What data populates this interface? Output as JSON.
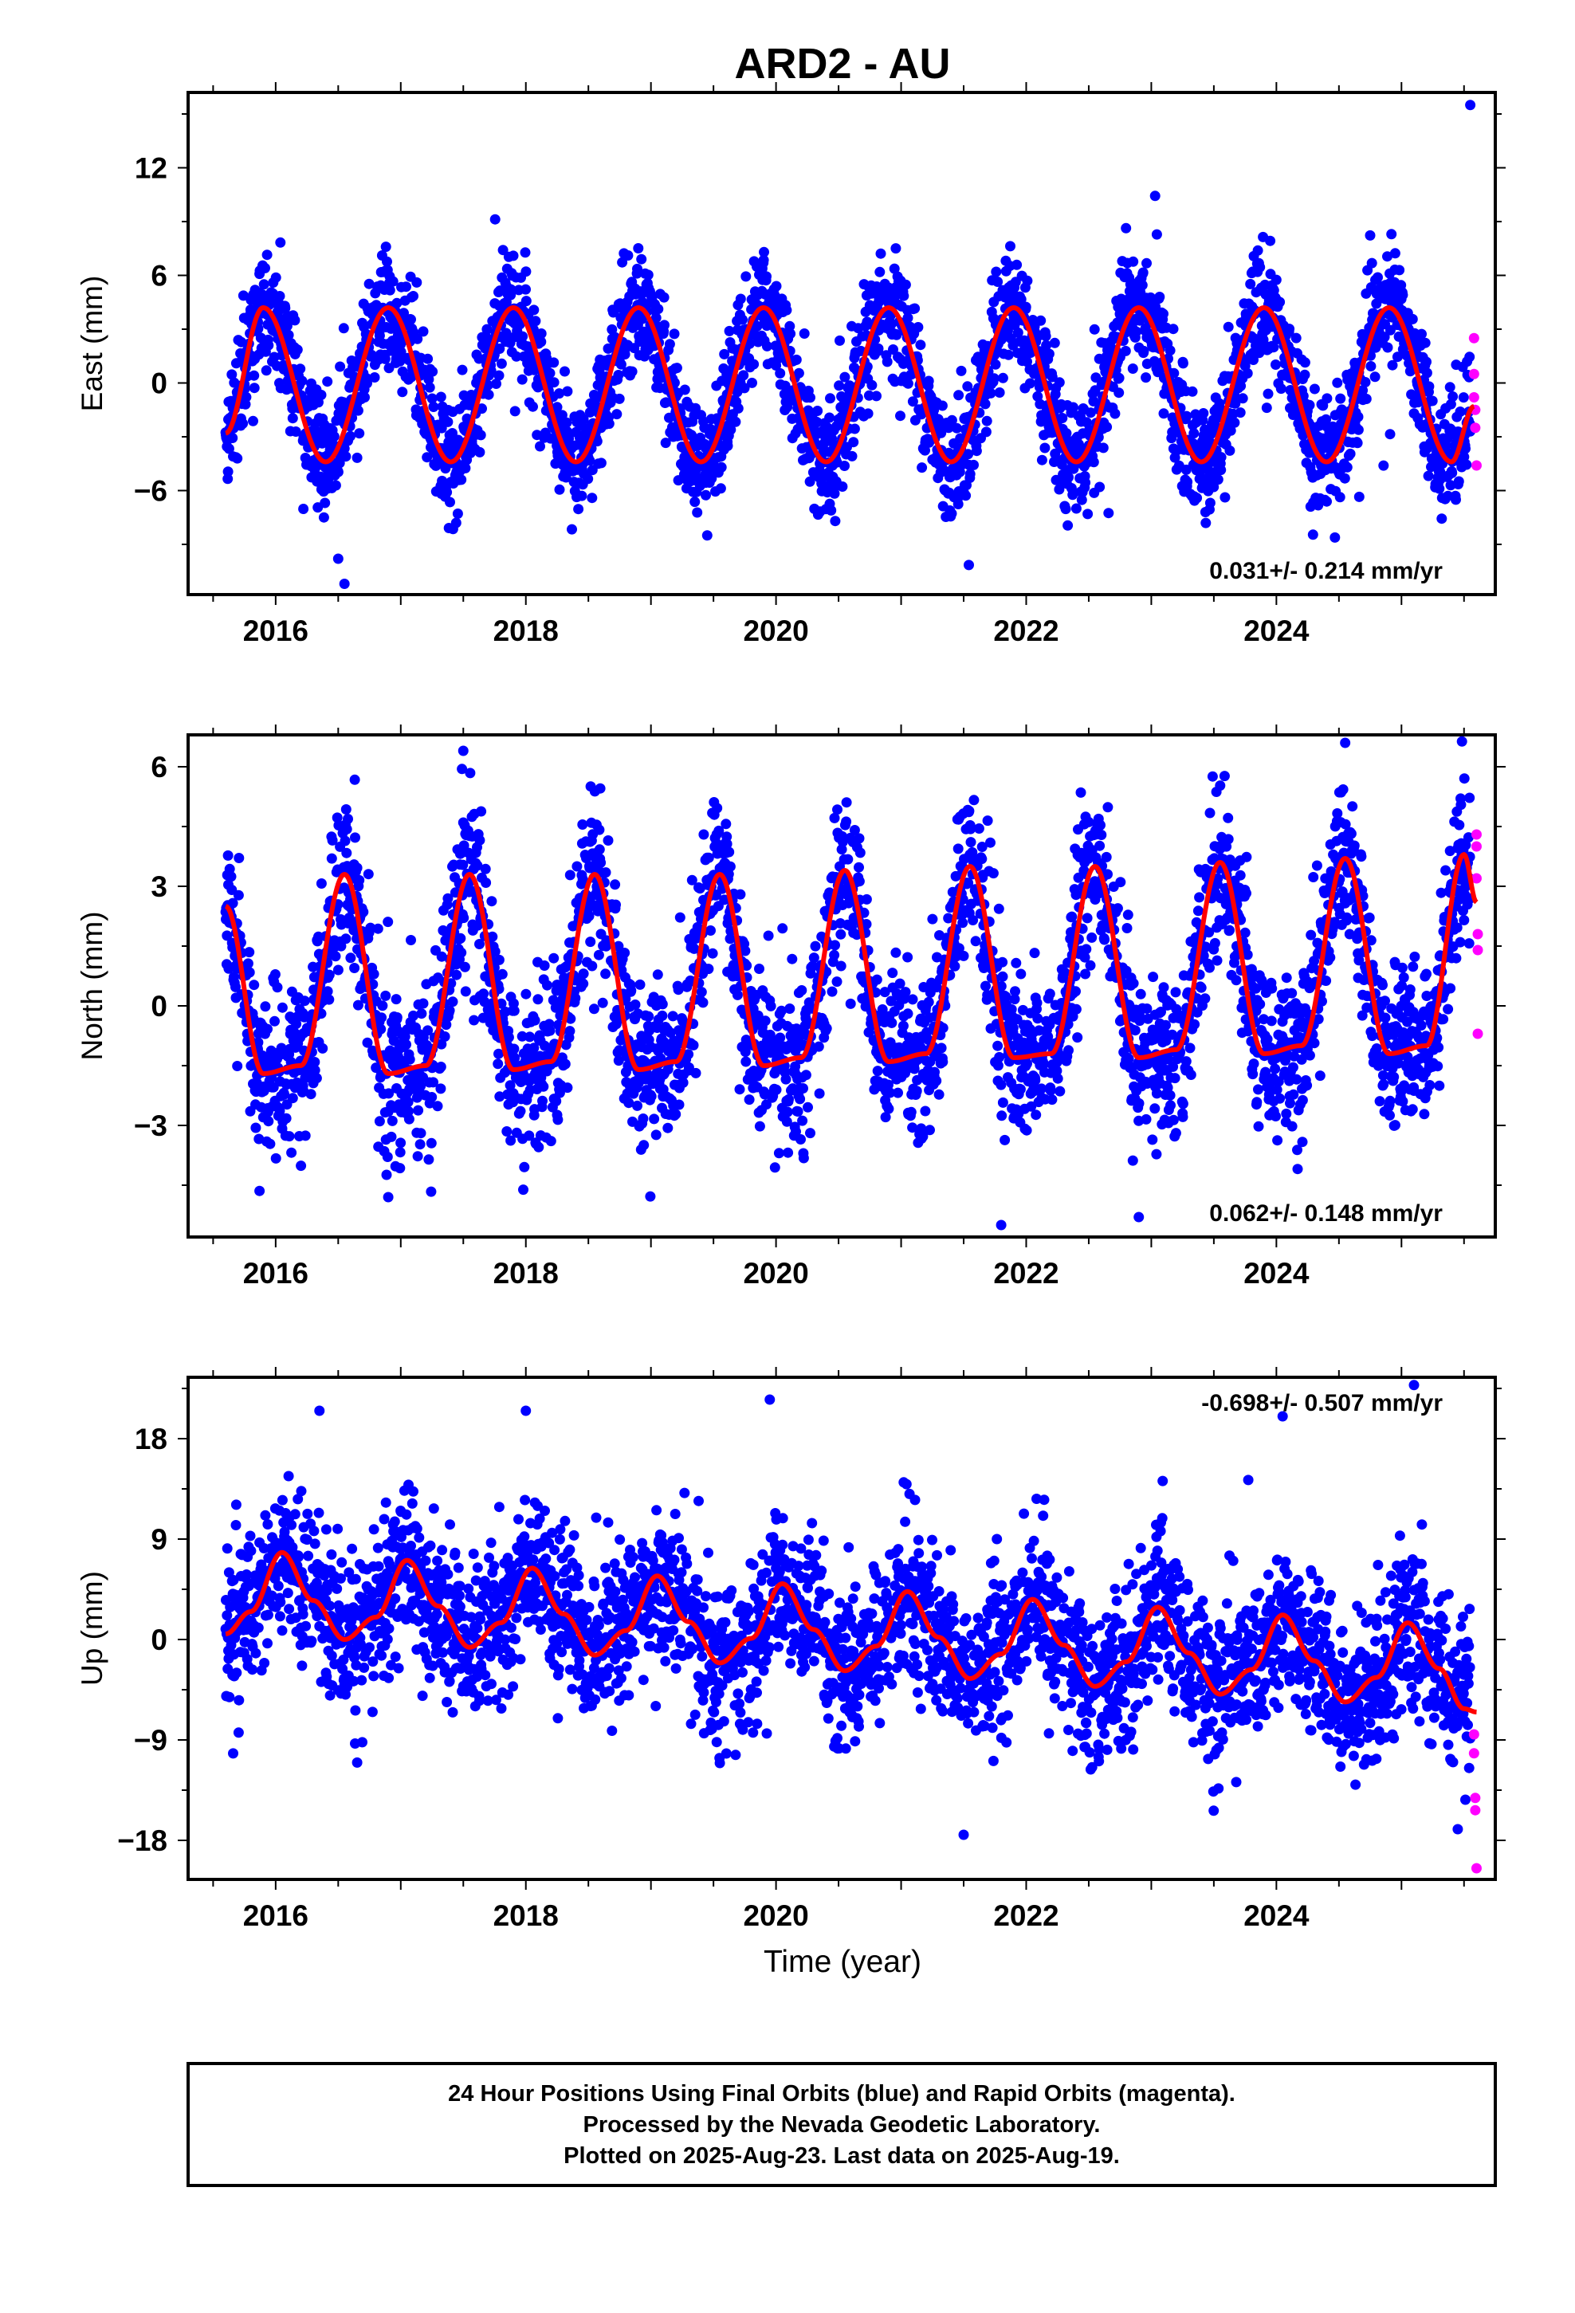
{
  "figure": {
    "title": "ARD2 - AU",
    "xlabel": "Time (year)",
    "caption": [
      "24 Hour Positions Using Final Orbits (blue) and Rapid Orbits (magenta).",
      "Processed by the Nevada Geodetic Laboratory.",
      "Plotted on 2025-Aug-23. Last data on 2025-Aug-19."
    ],
    "colors": {
      "final": "#0000ff",
      "rapid": "#ff00ff",
      "model": "#ff0000",
      "frame": "#000000"
    }
  },
  "chart_data": [
    {
      "type": "scatter",
      "panel": "east",
      "ylabel": "East (mm)",
      "rate_label": "0.031+/- 0.214 mm/yr",
      "rate_position": "bottom-right",
      "xlim": [
        2015.3,
        2025.75
      ],
      "ylim": [
        -11.8,
        16.2
      ],
      "xticks": [
        2016,
        2018,
        2020,
        2022,
        2024
      ],
      "yticks": [
        -6,
        0,
        6,
        12
      ],
      "series": [
        {
          "role": "final",
          "x_start": 2015.6,
          "x_end": 2025.55,
          "seasonal_amplitude": 4.2,
          "seasonal_peak": 2015.92,
          "spread": 1.6,
          "outliers": [
            [
              2016.55,
              -11.2
            ],
            [
              2016.5,
              -9.8
            ],
            [
              2019.45,
              -8.5
            ],
            [
              2025.55,
              15.5
            ]
          ]
        },
        {
          "role": "rapid",
          "points": [
            [
              2025.58,
              2.5
            ],
            [
              2025.58,
              0.5
            ],
            [
              2025.58,
              -0.8
            ],
            [
              2025.59,
              -1.5
            ],
            [
              2025.59,
              -2.5
            ],
            [
              2025.6,
              -4.6
            ]
          ]
        }
      ],
      "model": [
        [
          2015.6,
          -2.8
        ],
        [
          2015.9,
          4.2
        ],
        [
          2016.4,
          -4.4
        ],
        [
          2016.9,
          4.2
        ],
        [
          2017.4,
          -4.4
        ],
        [
          2017.9,
          4.2
        ],
        [
          2018.4,
          -4.4
        ],
        [
          2018.9,
          4.2
        ],
        [
          2019.4,
          -4.4
        ],
        [
          2019.9,
          4.2
        ],
        [
          2020.4,
          -4.4
        ],
        [
          2020.9,
          4.2
        ],
        [
          2021.4,
          -4.4
        ],
        [
          2021.9,
          4.2
        ],
        [
          2022.4,
          -4.4
        ],
        [
          2022.9,
          4.2
        ],
        [
          2023.4,
          -4.4
        ],
        [
          2023.9,
          4.2
        ],
        [
          2024.4,
          -4.4
        ],
        [
          2024.9,
          4.2
        ],
        [
          2025.4,
          -4.4
        ],
        [
          2025.58,
          -1.3
        ]
      ]
    },
    {
      "type": "scatter",
      "panel": "north",
      "ylabel": "North (mm)",
      "rate_label": "0.062+/- 0.148 mm/yr",
      "rate_position": "bottom-right",
      "xlim": [
        2015.3,
        2025.75
      ],
      "ylim": [
        -5.8,
        6.8
      ],
      "xticks": [
        2016,
        2018,
        2020,
        2022,
        2024
      ],
      "yticks": [
        -3,
        0,
        3,
        6
      ],
      "series": [
        {
          "role": "final",
          "x_start": 2015.6,
          "x_end": 2025.55,
          "peak_value": 3.4,
          "trough_value": -1.6,
          "spread": 1.0,
          "outliers": [
            [
              2016.9,
              -4.8
            ],
            [
              2021.8,
              -5.5
            ],
            [
              2022.9,
              -5.3
            ],
            [
              2024.55,
              6.6
            ],
            [
              2017.5,
              6.4
            ]
          ]
        },
        {
          "role": "rapid",
          "points": [
            [
              2025.6,
              4.3
            ],
            [
              2025.6,
              4.0
            ],
            [
              2025.6,
              3.2
            ],
            [
              2025.61,
              1.8
            ],
            [
              2025.61,
              1.4
            ],
            [
              2025.61,
              -0.7
            ]
          ]
        }
      ],
      "model": [
        [
          2015.6,
          2.5
        ],
        [
          2015.9,
          -1.7
        ],
        [
          2016.2,
          -1.5
        ],
        [
          2016.55,
          3.3
        ],
        [
          2016.9,
          -1.7
        ],
        [
          2017.2,
          -1.5
        ],
        [
          2017.55,
          3.3
        ],
        [
          2017.9,
          -1.6
        ],
        [
          2018.2,
          -1.4
        ],
        [
          2018.55,
          3.3
        ],
        [
          2018.9,
          -1.6
        ],
        [
          2019.2,
          -1.4
        ],
        [
          2019.55,
          3.3
        ],
        [
          2019.9,
          -1.5
        ],
        [
          2020.2,
          -1.3
        ],
        [
          2020.55,
          3.4
        ],
        [
          2020.9,
          -1.4
        ],
        [
          2021.2,
          -1.2
        ],
        [
          2021.55,
          3.5
        ],
        [
          2021.9,
          -1.3
        ],
        [
          2022.2,
          -1.2
        ],
        [
          2022.55,
          3.5
        ],
        [
          2022.9,
          -1.3
        ],
        [
          2023.2,
          -1.1
        ],
        [
          2023.55,
          3.6
        ],
        [
          2023.9,
          -1.2
        ],
        [
          2024.2,
          -1.0
        ],
        [
          2024.55,
          3.7
        ],
        [
          2024.9,
          -1.2
        ],
        [
          2025.2,
          -1.0
        ],
        [
          2025.5,
          3.8
        ],
        [
          2025.6,
          2.6
        ]
      ]
    },
    {
      "type": "scatter",
      "panel": "up",
      "ylabel": "Up (mm)",
      "rate_label": "-0.698+/- 0.507 mm/yr",
      "rate_position": "top-right",
      "xlim": [
        2015.3,
        2025.75
      ],
      "ylim": [
        -21.5,
        23.5
      ],
      "xticks": [
        2016,
        2018,
        2020,
        2022,
        2024
      ],
      "yticks": [
        -18,
        -9,
        0,
        9,
        18
      ],
      "series": [
        {
          "role": "final",
          "x_start": 2015.6,
          "x_end": 2025.55,
          "seasonal_amplitude": 4.0,
          "seasonal_peak": 2016.05,
          "offset": 3.8,
          "trend": -0.698,
          "spread": 3.5,
          "outliers": [
            [
              2016.35,
              20.5
            ],
            [
              2018.0,
              20.5
            ],
            [
              2019.95,
              21.5
            ],
            [
              2024.05,
              20.0
            ],
            [
              2025.1,
              22.8
            ],
            [
              2021.5,
              -17.5
            ],
            [
              2025.45,
              -17.0
            ]
          ]
        },
        {
          "role": "rapid",
          "points": [
            [
              2025.58,
              -8.5
            ],
            [
              2025.58,
              -10.2
            ],
            [
              2025.59,
              -14.2
            ],
            [
              2025.59,
              -15.3
            ],
            [
              2025.6,
              -20.5
            ]
          ]
        }
      ],
      "model": [
        [
          2015.6,
          0.5
        ],
        [
          2015.8,
          2.5
        ],
        [
          2016.05,
          7.8
        ],
        [
          2016.3,
          3.5
        ],
        [
          2016.55,
          0.0
        ],
        [
          2016.8,
          2.0
        ],
        [
          2017.05,
          7.1
        ],
        [
          2017.3,
          3.0
        ],
        [
          2017.55,
          -0.7
        ],
        [
          2017.8,
          1.5
        ],
        [
          2018.05,
          6.4
        ],
        [
          2018.3,
          2.3
        ],
        [
          2018.55,
          -1.4
        ],
        [
          2018.8,
          0.8
        ],
        [
          2019.05,
          5.7
        ],
        [
          2019.3,
          1.6
        ],
        [
          2019.55,
          -2.1
        ],
        [
          2019.8,
          0.1
        ],
        [
          2020.05,
          5.0
        ],
        [
          2020.3,
          0.9
        ],
        [
          2020.55,
          -2.8
        ],
        [
          2020.8,
          -0.6
        ],
        [
          2021.05,
          4.3
        ],
        [
          2021.3,
          0.2
        ],
        [
          2021.55,
          -3.5
        ],
        [
          2021.8,
          -1.3
        ],
        [
          2022.05,
          3.6
        ],
        [
          2022.3,
          -0.5
        ],
        [
          2022.55,
          -4.2
        ],
        [
          2022.8,
          -2.0
        ],
        [
          2023.05,
          2.9
        ],
        [
          2023.3,
          -1.2
        ],
        [
          2023.55,
          -4.9
        ],
        [
          2023.8,
          -2.7
        ],
        [
          2024.05,
          2.2
        ],
        [
          2024.3,
          -1.9
        ],
        [
          2024.55,
          -5.6
        ],
        [
          2024.8,
          -3.4
        ],
        [
          2025.05,
          1.5
        ],
        [
          2025.3,
          -2.6
        ],
        [
          2025.5,
          -6.2
        ],
        [
          2025.6,
          -6.5
        ]
      ]
    }
  ]
}
